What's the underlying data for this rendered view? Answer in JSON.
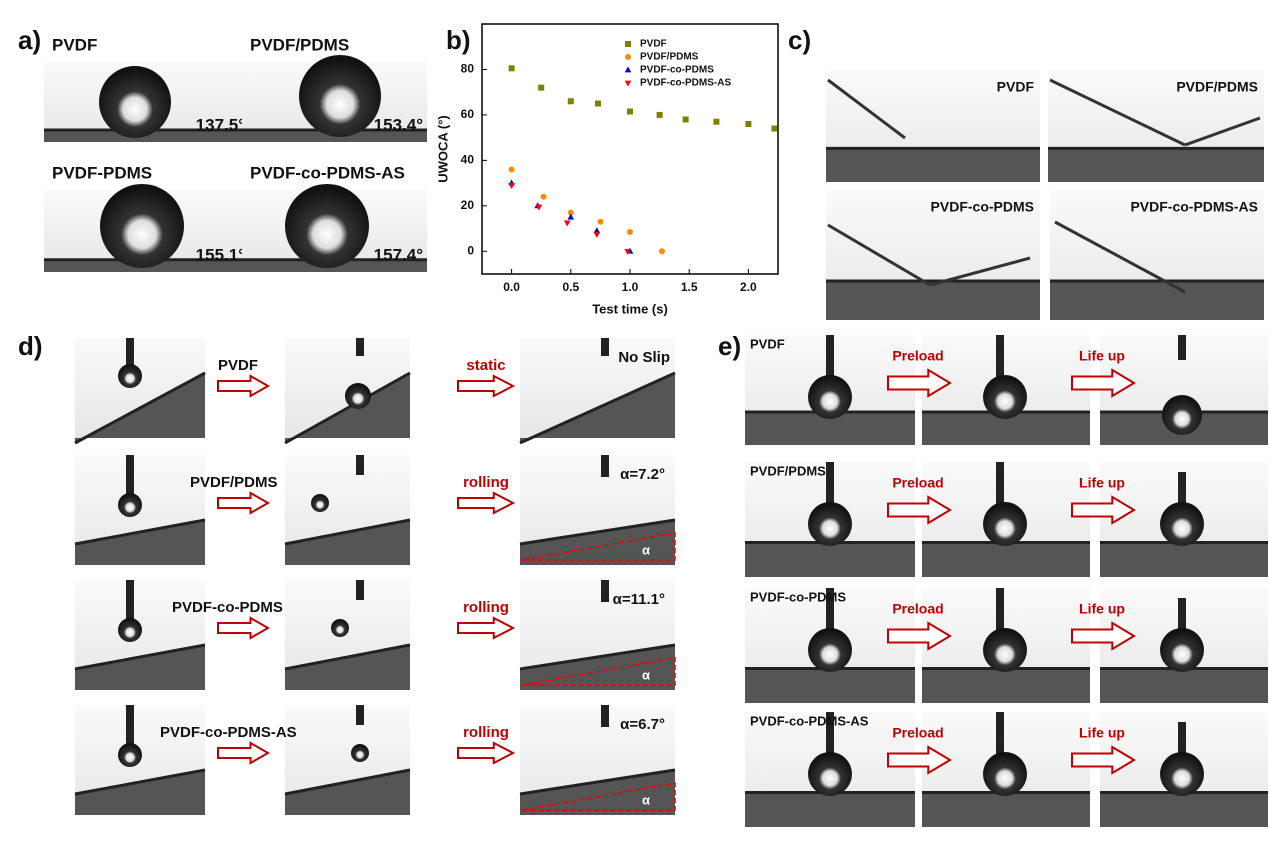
{
  "panel_labels": [
    "a)",
    "b)",
    "c)",
    "d)",
    "e)"
  ],
  "a": {
    "samples": [
      {
        "name": "PVDF",
        "angle": "137.5°"
      },
      {
        "name": "PVDF/PDMS",
        "angle": "153.4°"
      },
      {
        "name": "PVDF-PDMS",
        "angle": "155.1°"
      },
      {
        "name": "PVDF-co-PDMS-AS",
        "angle": "157.4°"
      }
    ]
  },
  "chart_data": {
    "type": "scatter",
    "x_label": "Test time (s)",
    "y_label": "UWOCA (°)",
    "xlim": [
      -0.25,
      2.25
    ],
    "ylim": [
      -10,
      100
    ],
    "xticks": [
      {
        "value": 0,
        "label": "0.0"
      },
      {
        "value": 0.5,
        "label": "0.5"
      },
      {
        "value": 1,
        "label": "1.0"
      },
      {
        "value": 1.5,
        "label": "1.5"
      },
      {
        "value": 2,
        "label": "2.0"
      }
    ],
    "yticks": [
      0,
      20,
      40,
      60,
      80
    ],
    "legend": "upper right",
    "series": [
      {
        "name": "PVDF",
        "color": "#808000",
        "marker": "square",
        "x": [
          0,
          0.25,
          0.5,
          0.73,
          1.0,
          1.25,
          1.47,
          1.73,
          2.0,
          2.22
        ],
        "values": [
          80.5,
          72,
          66,
          65,
          61.5,
          60,
          58,
          57,
          56,
          54
        ]
      },
      {
        "name": "PVDF/PDMS",
        "color": "#ff8c00",
        "marker": "circle",
        "x": [
          0,
          0.27,
          0.5,
          0.75,
          1.0,
          1.27
        ],
        "values": [
          36,
          24,
          17,
          13,
          8.5,
          0
        ]
      },
      {
        "name": "PVDF-co-PDMS",
        "color": "#0000ff",
        "marker": "triangle",
        "x": [
          0,
          0.22,
          0.5,
          0.72,
          1.0
        ],
        "values": [
          30,
          20,
          15,
          9,
          0
        ]
      },
      {
        "name": "PVDF-co-PDMS-AS",
        "color": "#ff0000",
        "marker": "triangle-down",
        "x": [
          0,
          0.23,
          0.47,
          0.72,
          0.98
        ],
        "values": [
          29,
          19.5,
          12.5,
          7.5,
          0
        ]
      }
    ]
  },
  "c": {
    "samples": [
      "PVDF",
      "PVDF/PDMS",
      "PVDF-co-PDMS",
      "PVDF-co-PDMS-AS"
    ]
  },
  "d": {
    "rows": [
      {
        "name": "PVDF",
        "state": "static",
        "result": "No Slip"
      },
      {
        "name": "PVDF/PDMS",
        "state": "rolling",
        "result": "α=7.2°",
        "angle_symbol": "α"
      },
      {
        "name": "PVDF-co-PDMS",
        "state": "rolling",
        "result": "α=11.1°",
        "angle_symbol": "α"
      },
      {
        "name": "PVDF-co-PDMS-AS",
        "state": "rolling",
        "result": "α=6.7°",
        "angle_symbol": "α"
      }
    ]
  },
  "e": {
    "rows": [
      "PVDF",
      "PVDF/PDMS",
      "PVDF-co-PDMS",
      "PVDF-co-PDMS-AS"
    ],
    "steps": [
      "Preload",
      "Life up"
    ]
  }
}
